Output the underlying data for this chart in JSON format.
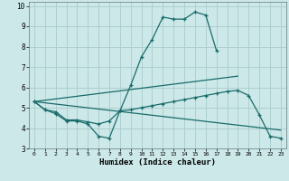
{
  "xlabel": "Humidex (Indice chaleur)",
  "background_color": "#cce8e8",
  "grid_color": "#aacccc",
  "line_color": "#1a6b6b",
  "xlim": [
    -0.5,
    23.5
  ],
  "ylim": [
    3,
    10.2
  ],
  "yticks": [
    3,
    4,
    5,
    6,
    7,
    8,
    9,
    10
  ],
  "xticks": [
    0,
    1,
    2,
    3,
    4,
    5,
    6,
    7,
    8,
    9,
    10,
    11,
    12,
    13,
    14,
    15,
    16,
    17,
    18,
    19,
    20,
    21,
    22,
    23
  ],
  "line1_x": [
    0,
    1,
    2,
    3,
    4,
    5,
    6,
    7,
    8,
    9,
    10,
    11,
    12,
    13,
    14,
    15,
    16,
    17
  ],
  "line1_y": [
    5.3,
    4.9,
    4.7,
    4.35,
    4.35,
    4.2,
    3.6,
    3.5,
    4.85,
    6.1,
    7.5,
    8.35,
    9.45,
    9.35,
    9.35,
    9.7,
    9.55,
    7.8
  ],
  "line2_x": [
    0,
    1,
    2,
    3,
    4,
    5,
    6,
    7,
    8,
    9,
    10,
    11,
    12,
    13,
    14,
    15,
    16,
    17,
    18,
    19,
    20,
    21,
    22,
    23
  ],
  "line2_y": [
    5.3,
    4.9,
    4.8,
    4.4,
    4.4,
    4.3,
    4.2,
    4.35,
    4.85,
    4.9,
    5.0,
    5.1,
    5.2,
    5.3,
    5.4,
    5.5,
    5.6,
    5.7,
    5.8,
    5.85,
    5.6,
    4.65,
    3.6,
    3.5
  ],
  "line3_x": [
    0,
    23
  ],
  "line3_y": [
    5.3,
    3.9
  ],
  "line4_x": [
    0,
    19
  ],
  "line4_y": [
    5.3,
    6.55
  ]
}
